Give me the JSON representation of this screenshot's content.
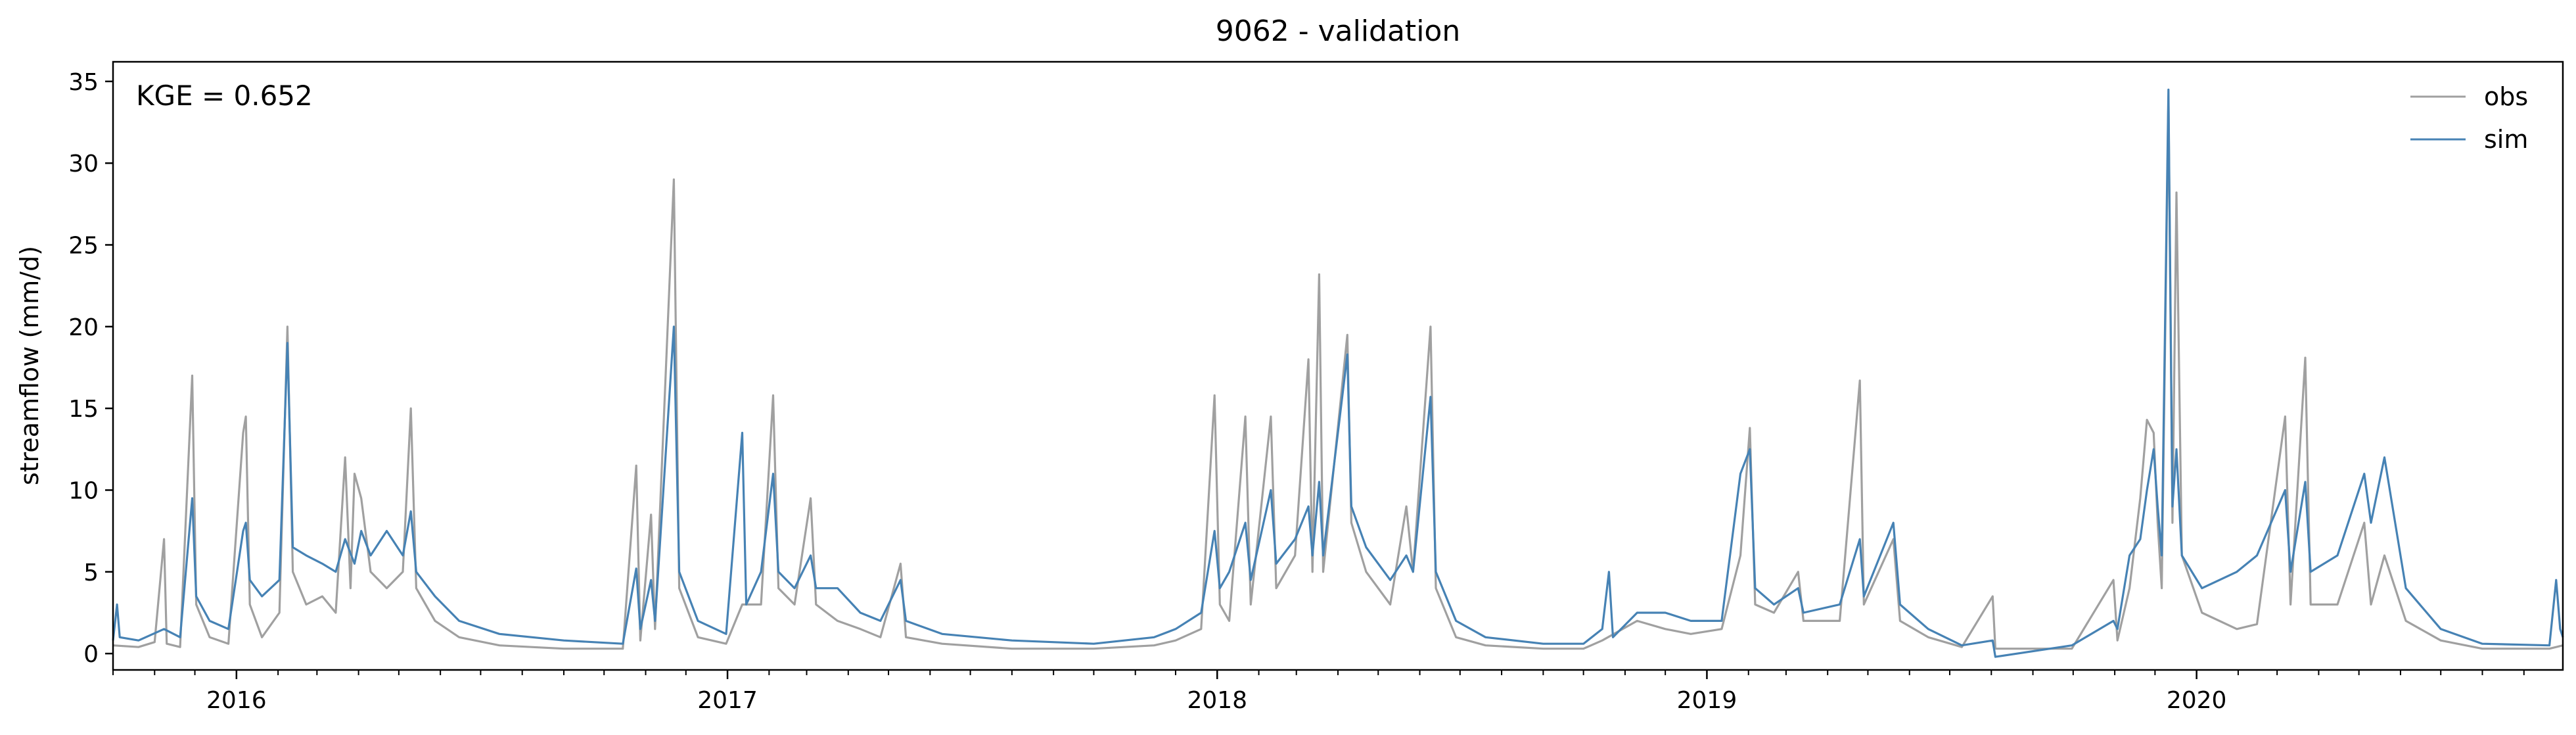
{
  "chart_data": {
    "type": "line",
    "title": "9062 - validation",
    "xlabel": "",
    "ylabel": "streamflow (mm/d)",
    "xlim": [
      "2015-10-01",
      "2020-09-30"
    ],
    "ylim": [
      -1.0,
      36.2
    ],
    "yticks": [
      0,
      5,
      10,
      15,
      20,
      25,
      30,
      35
    ],
    "xticks": [
      {
        "date": "2016-01-01",
        "label": "2016"
      },
      {
        "date": "2017-01-01",
        "label": "2017"
      },
      {
        "date": "2018-01-01",
        "label": "2018"
      },
      {
        "date": "2019-01-01",
        "label": "2019"
      },
      {
        "date": "2020-01-01",
        "label": "2020"
      }
    ],
    "grid": false,
    "legend": {
      "position": "top-right",
      "frame": false
    },
    "annotation": "KGE = 0.652",
    "series": [
      {
        "name": "obs",
        "color": "#a0a0a0",
        "points": [
          [
            "2015-10-01",
            0.5
          ],
          [
            "2015-10-20",
            0.4
          ],
          [
            "2015-11-01",
            0.7
          ],
          [
            "2015-11-08",
            7.0
          ],
          [
            "2015-11-10",
            0.6
          ],
          [
            "2015-11-20",
            0.4
          ],
          [
            "2015-11-29",
            17.0
          ],
          [
            "2015-12-02",
            3.0
          ],
          [
            "2015-12-12",
            1.0
          ],
          [
            "2015-12-26",
            0.6
          ],
          [
            "2016-01-06",
            13.5
          ],
          [
            "2016-01-08",
            14.5
          ],
          [
            "2016-01-11",
            3.0
          ],
          [
            "2016-01-20",
            1.0
          ],
          [
            "2016-02-02",
            2.5
          ],
          [
            "2016-02-08",
            20.0
          ],
          [
            "2016-02-12",
            5.0
          ],
          [
            "2016-02-22",
            3.0
          ],
          [
            "2016-03-05",
            3.5
          ],
          [
            "2016-03-15",
            2.5
          ],
          [
            "2016-03-22",
            12.0
          ],
          [
            "2016-03-26",
            4.0
          ],
          [
            "2016-03-29",
            11.0
          ],
          [
            "2016-04-03",
            9.5
          ],
          [
            "2016-04-10",
            5.0
          ],
          [
            "2016-04-22",
            4.0
          ],
          [
            "2016-05-04",
            5.0
          ],
          [
            "2016-05-10",
            15.0
          ],
          [
            "2016-05-14",
            4.0
          ],
          [
            "2016-05-28",
            2.0
          ],
          [
            "2016-06-15",
            1.0
          ],
          [
            "2016-07-15",
            0.5
          ],
          [
            "2016-09-01",
            0.3
          ],
          [
            "2016-10-15",
            0.3
          ],
          [
            "2016-10-25",
            11.5
          ],
          [
            "2016-10-28",
            0.8
          ],
          [
            "2016-11-05",
            8.5
          ],
          [
            "2016-11-08",
            1.5
          ],
          [
            "2016-11-22",
            29.0
          ],
          [
            "2016-11-26",
            4.0
          ],
          [
            "2016-12-10",
            1.0
          ],
          [
            "2016-12-31",
            0.6
          ],
          [
            "2017-01-12",
            3.0
          ],
          [
            "2017-01-26",
            3.0
          ],
          [
            "2017-02-04",
            15.8
          ],
          [
            "2017-02-08",
            4.0
          ],
          [
            "2017-02-20",
            3.0
          ],
          [
            "2017-03-04",
            9.5
          ],
          [
            "2017-03-08",
            3.0
          ],
          [
            "2017-03-24",
            2.0
          ],
          [
            "2017-04-10",
            1.5
          ],
          [
            "2017-04-25",
            1.0
          ],
          [
            "2017-05-10",
            5.5
          ],
          [
            "2017-05-14",
            1.0
          ],
          [
            "2017-06-10",
            0.6
          ],
          [
            "2017-08-01",
            0.3
          ],
          [
            "2017-10-01",
            0.3
          ],
          [
            "2017-11-15",
            0.5
          ],
          [
            "2017-12-01",
            0.8
          ],
          [
            "2017-12-20",
            1.5
          ],
          [
            "2017-12-30",
            15.8
          ],
          [
            "2018-01-03",
            3.0
          ],
          [
            "2018-01-10",
            2.0
          ],
          [
            "2018-01-22",
            14.5
          ],
          [
            "2018-01-26",
            3.0
          ],
          [
            "2018-02-10",
            14.5
          ],
          [
            "2018-02-14",
            4.0
          ],
          [
            "2018-02-28",
            6.0
          ],
          [
            "2018-03-10",
            18.0
          ],
          [
            "2018-03-13",
            5.0
          ],
          [
            "2018-03-18",
            23.2
          ],
          [
            "2018-03-21",
            5.0
          ],
          [
            "2018-04-08",
            19.5
          ],
          [
            "2018-04-11",
            8.0
          ],
          [
            "2018-04-22",
            5.0
          ],
          [
            "2018-05-10",
            3.0
          ],
          [
            "2018-05-22",
            9.0
          ],
          [
            "2018-05-27",
            5.0
          ],
          [
            "2018-06-09",
            20.0
          ],
          [
            "2018-06-13",
            4.0
          ],
          [
            "2018-06-28",
            1.0
          ],
          [
            "2018-07-20",
            0.5
          ],
          [
            "2018-09-01",
            0.3
          ],
          [
            "2018-10-01",
            0.3
          ],
          [
            "2018-10-15",
            0.8
          ],
          [
            "2018-11-10",
            2.0
          ],
          [
            "2018-12-01",
            1.5
          ],
          [
            "2018-12-20",
            1.2
          ],
          [
            "2019-01-12",
            1.5
          ],
          [
            "2019-01-26",
            6.0
          ],
          [
            "2019-02-02",
            13.8
          ],
          [
            "2019-02-06",
            3.0
          ],
          [
            "2019-02-20",
            2.5
          ],
          [
            "2019-03-10",
            5.0
          ],
          [
            "2019-03-14",
            2.0
          ],
          [
            "2019-04-10",
            2.0
          ],
          [
            "2019-04-25",
            16.7
          ],
          [
            "2019-04-28",
            3.0
          ],
          [
            "2019-05-20",
            7.0
          ],
          [
            "2019-05-25",
            2.0
          ],
          [
            "2019-06-15",
            1.0
          ],
          [
            "2019-07-10",
            0.4
          ],
          [
            "2019-08-02",
            3.5
          ],
          [
            "2019-08-04",
            0.3
          ],
          [
            "2019-09-30",
            0.3
          ],
          [
            "2019-10-31",
            4.5
          ],
          [
            "2019-11-03",
            0.8
          ],
          [
            "2019-11-12",
            4.0
          ],
          [
            "2019-11-20",
            9.5
          ],
          [
            "2019-11-25",
            14.3
          ],
          [
            "2019-11-30",
            13.5
          ],
          [
            "2019-12-03",
            8.0
          ],
          [
            "2019-12-06",
            4.0
          ],
          [
            "2019-12-11",
            34.0
          ],
          [
            "2019-12-14",
            8.0
          ],
          [
            "2019-12-17",
            28.2
          ],
          [
            "2019-12-21",
            6.0
          ],
          [
            "2020-01-05",
            2.5
          ],
          [
            "2020-01-31",
            1.5
          ],
          [
            "2020-02-15",
            1.8
          ],
          [
            "2020-03-07",
            14.5
          ],
          [
            "2020-03-11",
            3.0
          ],
          [
            "2020-03-22",
            18.1
          ],
          [
            "2020-03-26",
            3.0
          ],
          [
            "2020-04-15",
            3.0
          ],
          [
            "2020-05-05",
            8.0
          ],
          [
            "2020-05-10",
            3.0
          ],
          [
            "2020-05-20",
            6.0
          ],
          [
            "2020-06-05",
            2.0
          ],
          [
            "2020-07-01",
            0.8
          ],
          [
            "2020-08-01",
            0.3
          ],
          [
            "2020-09-20",
            0.3
          ],
          [
            "2020-09-30",
            0.5
          ]
        ]
      },
      {
        "name": "sim",
        "color": "#4682b4",
        "points": [
          [
            "2015-10-01",
            0.8
          ],
          [
            "2015-10-04",
            3.0
          ],
          [
            "2015-10-06",
            1.0
          ],
          [
            "2015-10-20",
            0.8
          ],
          [
            "2015-11-08",
            1.5
          ],
          [
            "2015-11-20",
            1.0
          ],
          [
            "2015-11-29",
            9.5
          ],
          [
            "2015-12-02",
            3.5
          ],
          [
            "2015-12-12",
            2.0
          ],
          [
            "2015-12-26",
            1.5
          ],
          [
            "2016-01-06",
            7.5
          ],
          [
            "2016-01-08",
            8.0
          ],
          [
            "2016-01-11",
            4.5
          ],
          [
            "2016-01-20",
            3.5
          ],
          [
            "2016-02-02",
            4.5
          ],
          [
            "2016-02-08",
            19.0
          ],
          [
            "2016-02-12",
            6.5
          ],
          [
            "2016-02-22",
            6.0
          ],
          [
            "2016-03-05",
            5.5
          ],
          [
            "2016-03-15",
            5.0
          ],
          [
            "2016-03-22",
            7.0
          ],
          [
            "2016-03-29",
            5.5
          ],
          [
            "2016-04-03",
            7.5
          ],
          [
            "2016-04-10",
            6.0
          ],
          [
            "2016-04-22",
            7.5
          ],
          [
            "2016-05-04",
            6.0
          ],
          [
            "2016-05-10",
            8.7
          ],
          [
            "2016-05-14",
            5.0
          ],
          [
            "2016-05-28",
            3.5
          ],
          [
            "2016-06-15",
            2.0
          ],
          [
            "2016-07-15",
            1.2
          ],
          [
            "2016-09-01",
            0.8
          ],
          [
            "2016-10-15",
            0.6
          ],
          [
            "2016-10-25",
            5.2
          ],
          [
            "2016-10-28",
            1.5
          ],
          [
            "2016-11-05",
            4.5
          ],
          [
            "2016-11-08",
            2.0
          ],
          [
            "2016-11-22",
            20.0
          ],
          [
            "2016-11-26",
            5.0
          ],
          [
            "2016-12-10",
            2.0
          ],
          [
            "2016-12-31",
            1.2
          ],
          [
            "2017-01-12",
            13.5
          ],
          [
            "2017-01-15",
            3.0
          ],
          [
            "2017-01-26",
            5.0
          ],
          [
            "2017-02-04",
            11.0
          ],
          [
            "2017-02-08",
            5.0
          ],
          [
            "2017-02-20",
            4.0
          ],
          [
            "2017-03-04",
            6.0
          ],
          [
            "2017-03-08",
            4.0
          ],
          [
            "2017-03-24",
            4.0
          ],
          [
            "2017-04-10",
            2.5
          ],
          [
            "2017-04-25",
            2.0
          ],
          [
            "2017-05-10",
            4.5
          ],
          [
            "2017-05-14",
            2.0
          ],
          [
            "2017-06-10",
            1.2
          ],
          [
            "2017-08-01",
            0.8
          ],
          [
            "2017-10-01",
            0.6
          ],
          [
            "2017-11-15",
            1.0
          ],
          [
            "2017-12-01",
            1.5
          ],
          [
            "2017-12-20",
            2.5
          ],
          [
            "2017-12-30",
            7.5
          ],
          [
            "2018-01-03",
            4.0
          ],
          [
            "2018-01-10",
            5.0
          ],
          [
            "2018-01-22",
            8.0
          ],
          [
            "2018-01-26",
            4.5
          ],
          [
            "2018-02-10",
            10.0
          ],
          [
            "2018-02-14",
            5.5
          ],
          [
            "2018-02-28",
            7.0
          ],
          [
            "2018-03-10",
            9.0
          ],
          [
            "2018-03-13",
            6.0
          ],
          [
            "2018-03-18",
            10.5
          ],
          [
            "2018-03-21",
            6.0
          ],
          [
            "2018-04-08",
            18.3
          ],
          [
            "2018-04-11",
            9.0
          ],
          [
            "2018-04-22",
            6.5
          ],
          [
            "2018-05-10",
            4.5
          ],
          [
            "2018-05-22",
            6.0
          ],
          [
            "2018-05-27",
            5.0
          ],
          [
            "2018-06-09",
            15.7
          ],
          [
            "2018-06-13",
            5.0
          ],
          [
            "2018-06-28",
            2.0
          ],
          [
            "2018-07-20",
            1.0
          ],
          [
            "2018-09-01",
            0.6
          ],
          [
            "2018-10-01",
            0.6
          ],
          [
            "2018-10-15",
            1.5
          ],
          [
            "2018-10-20",
            5.0
          ],
          [
            "2018-10-23",
            1.0
          ],
          [
            "2018-11-10",
            2.5
          ],
          [
            "2018-12-01",
            2.5
          ],
          [
            "2018-12-20",
            2.0
          ],
          [
            "2019-01-12",
            2.0
          ],
          [
            "2019-01-26",
            11.0
          ],
          [
            "2019-02-02",
            12.5
          ],
          [
            "2019-02-06",
            4.0
          ],
          [
            "2019-02-20",
            3.0
          ],
          [
            "2019-03-10",
            4.0
          ],
          [
            "2019-03-14",
            2.5
          ],
          [
            "2019-04-10",
            3.0
          ],
          [
            "2019-04-25",
            7.0
          ],
          [
            "2019-04-28",
            3.5
          ],
          [
            "2019-05-20",
            8.0
          ],
          [
            "2019-05-25",
            3.0
          ],
          [
            "2019-06-15",
            1.5
          ],
          [
            "2019-07-10",
            0.5
          ],
          [
            "2019-08-02",
            0.8
          ],
          [
            "2019-08-04",
            -0.2
          ],
          [
            "2019-09-30",
            0.5
          ],
          [
            "2019-10-31",
            2.0
          ],
          [
            "2019-11-03",
            1.5
          ],
          [
            "2019-11-12",
            6.0
          ],
          [
            "2019-11-20",
            7.0
          ],
          [
            "2019-11-25",
            10.0
          ],
          [
            "2019-11-30",
            12.5
          ],
          [
            "2019-12-03",
            9.0
          ],
          [
            "2019-12-06",
            6.0
          ],
          [
            "2019-12-11",
            34.5
          ],
          [
            "2019-12-14",
            9.0
          ],
          [
            "2019-12-17",
            12.5
          ],
          [
            "2019-12-21",
            6.0
          ],
          [
            "2020-01-05",
            4.0
          ],
          [
            "2020-01-31",
            5.0
          ],
          [
            "2020-02-15",
            6.0
          ],
          [
            "2020-03-07",
            10.0
          ],
          [
            "2020-03-11",
            5.0
          ],
          [
            "2020-03-22",
            10.5
          ],
          [
            "2020-03-26",
            5.0
          ],
          [
            "2020-04-15",
            6.0
          ],
          [
            "2020-05-05",
            11.0
          ],
          [
            "2020-05-10",
            8.0
          ],
          [
            "2020-05-20",
            12.0
          ],
          [
            "2020-06-05",
            4.0
          ],
          [
            "2020-07-01",
            1.5
          ],
          [
            "2020-08-01",
            0.6
          ],
          [
            "2020-09-20",
            0.5
          ],
          [
            "2020-09-25",
            4.5
          ],
          [
            "2020-09-28",
            1.5
          ],
          [
            "2020-09-30",
            1.0
          ]
        ]
      }
    ]
  }
}
